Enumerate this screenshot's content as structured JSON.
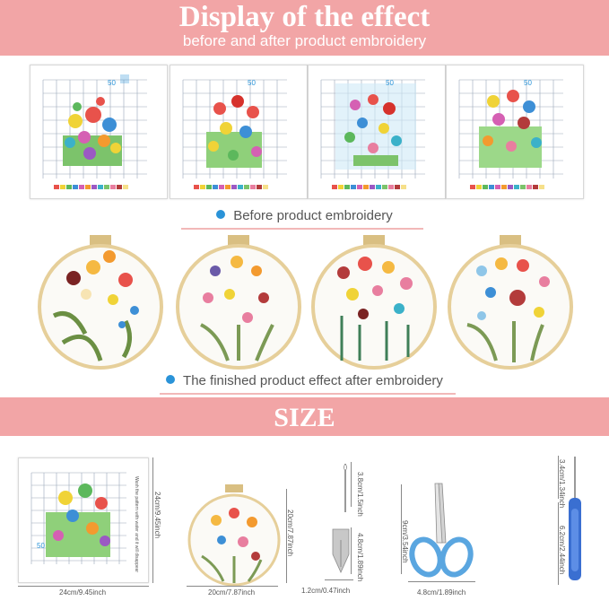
{
  "header": {
    "title": "Display of the effect",
    "subtitle": "before and after product embroidery"
  },
  "before_caption": "Before product embroidery",
  "after_caption": "The finished product effect after embroidery",
  "size_banner": "SIZE",
  "pattern_scale_label": "50",
  "pattern_side_note": "Wash the pattern with water and it will disappear",
  "dimensions": {
    "pattern_width": "24cm/9.45inch",
    "pattern_height": "24cm/9.45inch",
    "hoop_width": "20cm/7.87inch",
    "hoop_height": "20cm/7.87inch",
    "needle_length": "3.8cm/1.5inch",
    "threader_length": "4.8cm/1.89inch",
    "threader_width": "1.2cm/0.47inch",
    "scissors_length": "9cm/3.54inch",
    "scissors_width": "4.8cm/1.89inch",
    "seam_ripper_tip": "3.4cm/1.34inch",
    "seam_ripper_length": "6.2cm/2.44inch"
  },
  "colors": {
    "banner": "#f2a5a6",
    "caption_dot": "#2a93d8",
    "hoop_wood": "#e6cf9a",
    "scissors_handle": "#5aa6e0"
  }
}
